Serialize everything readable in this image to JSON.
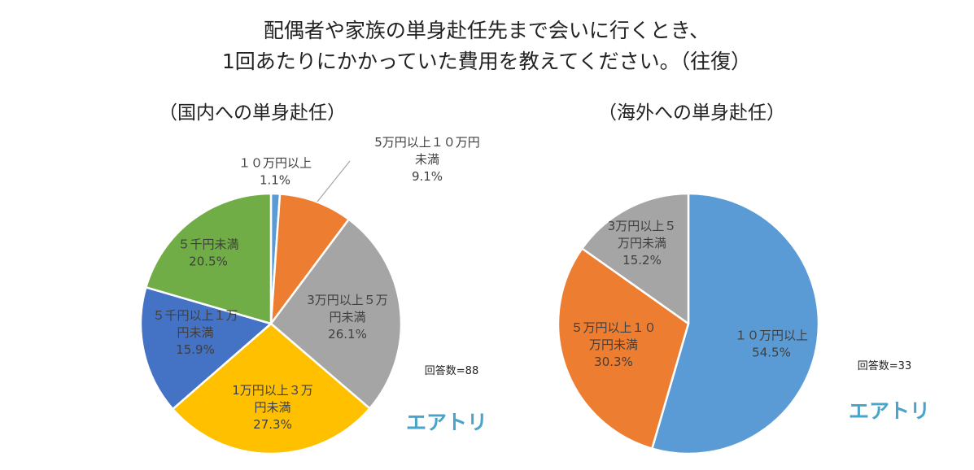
{
  "title_lines": [
    "配偶者や家族の単身赴任先まで会いに行くとき、",
    "1回あたりにかかっていた費用を教えてください。（往復）"
  ],
  "colors": {
    "blue": "#5b9bd5",
    "orange": "#ed7d31",
    "gray": "#a5a5a5",
    "yellow": "#ffc000",
    "darkblue": "#4472c4",
    "green": "#70ad47",
    "brand": "#4aa3c8",
    "slice_border": "#ffffff",
    "label_text": "#3f3f3f"
  },
  "brand_logo_text": "エアトリ",
  "chart_data": [
    {
      "type": "pie",
      "title": "（国内への単身赴任）",
      "response_count_label": "回答数=88",
      "start_angle_deg": 0,
      "direction": "clockwise",
      "slices": [
        {
          "label_lines": [
            "１０万円以上"
          ],
          "value": 1.1,
          "value_label": "1.1%",
          "color": "#5b9bd5",
          "leader_line": false
        },
        {
          "label_lines": [
            "5万円以上１０万円",
            "未満"
          ],
          "value": 9.1,
          "value_label": "9.1%",
          "color": "#ed7d31",
          "leader_line": true
        },
        {
          "label_lines": [
            "3万円以上５万",
            "円未満"
          ],
          "value": 26.1,
          "value_label": "26.1%",
          "color": "#a5a5a5",
          "leader_line": false
        },
        {
          "label_lines": [
            "1万円以上３万",
            "円未満"
          ],
          "value": 27.3,
          "value_label": "27.3%",
          "color": "#ffc000",
          "leader_line": false
        },
        {
          "label_lines": [
            "５千円以上１万",
            "円未満"
          ],
          "value": 15.9,
          "value_label": "15.9%",
          "color": "#4472c4",
          "leader_line": false
        },
        {
          "label_lines": [
            "５千円未満"
          ],
          "value": 20.5,
          "value_label": "20.5%",
          "color": "#70ad47",
          "leader_line": false
        }
      ]
    },
    {
      "type": "pie",
      "title": "（海外への単身赴任）",
      "response_count_label": "回答数=33",
      "start_angle_deg": 0,
      "direction": "clockwise",
      "slices": [
        {
          "label_lines": [
            "１０万円以上"
          ],
          "value": 54.5,
          "value_label": "54.5%",
          "color": "#5b9bd5",
          "leader_line": false
        },
        {
          "label_lines": [
            "５万円以上１０",
            "万円未満"
          ],
          "value": 30.3,
          "value_label": "30.3%",
          "color": "#ed7d31",
          "leader_line": false
        },
        {
          "label_lines": [
            "3万円以上５",
            "万円未満"
          ],
          "value": 15.2,
          "value_label": "15.2%",
          "color": "#a5a5a5",
          "leader_line": false
        }
      ]
    }
  ]
}
